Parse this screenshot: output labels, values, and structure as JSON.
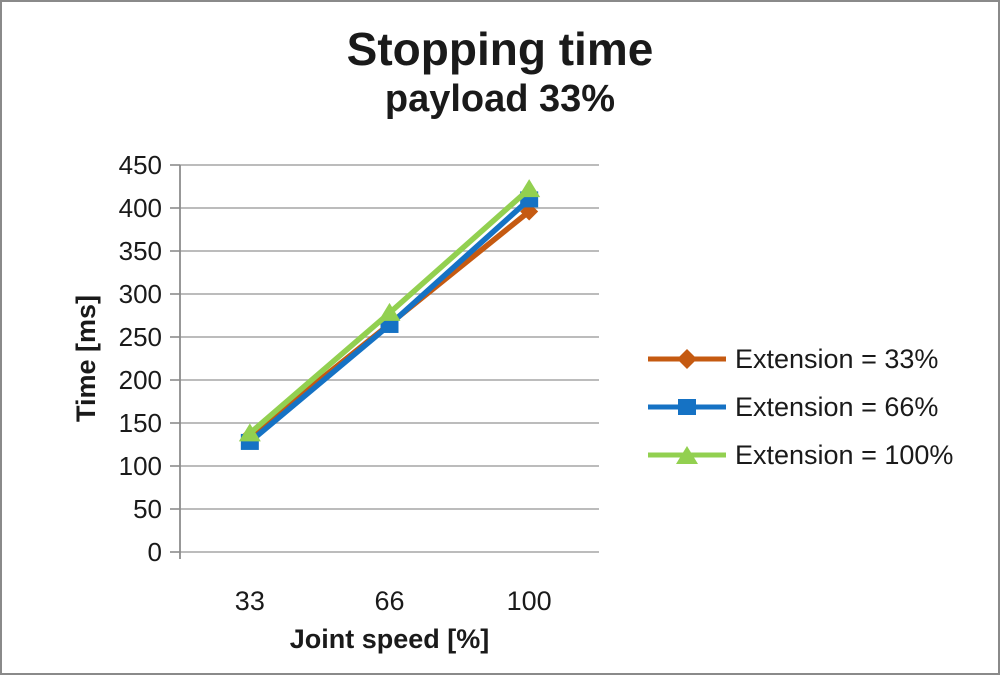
{
  "chart_data": {
    "type": "line",
    "title": "Stopping time",
    "subtitle": "payload 33%",
    "xlabel": "Joint speed [%]",
    "ylabel": "Time [ms]",
    "categories": [
      "33",
      "66",
      "100"
    ],
    "series": [
      {
        "name": "Extension = 33%",
        "marker": "diamond",
        "color": "#C55A11",
        "values": [
          135,
          265,
          396
        ]
      },
      {
        "name": "Extension = 66%",
        "marker": "square",
        "color": "#1572C4",
        "values": [
          128,
          264,
          410
        ]
      },
      {
        "name": "Extension = 100%",
        "marker": "triangle",
        "color": "#92D050",
        "values": [
          138,
          278,
          422
        ]
      }
    ],
    "ylim": [
      0,
      450
    ],
    "ytick_step": 50,
    "yticks": [
      0,
      50,
      100,
      150,
      200,
      250,
      300,
      350,
      400,
      450
    ],
    "grid": true,
    "legend_position": "right"
  },
  "colors": {
    "gridline": "#A6A6A6",
    "axis": "#8C8C8C",
    "text": "#1a1a1a",
    "background": "#FFFFFF",
    "frame_border": "#8a8a8a"
  }
}
